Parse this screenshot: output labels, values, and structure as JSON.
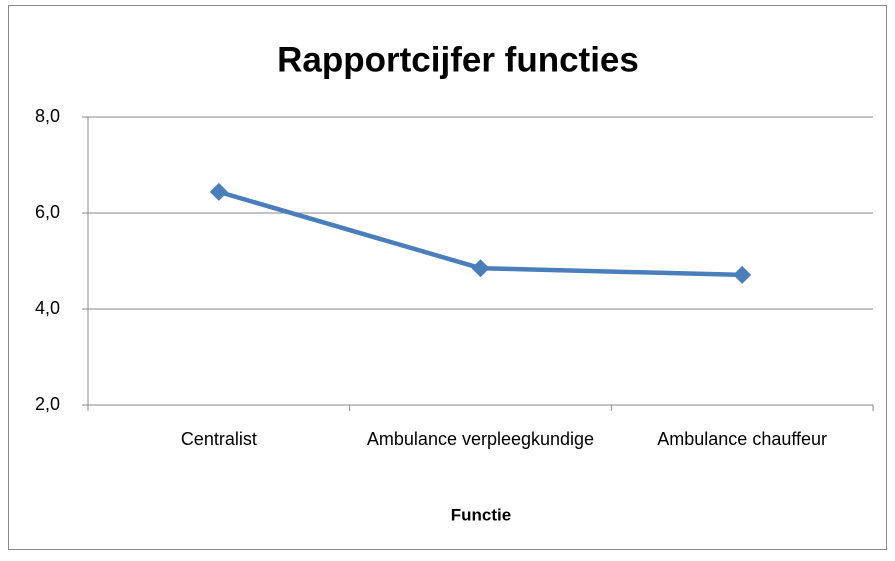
{
  "chart_data": {
    "type": "line",
    "title": "Rapportcijfer functies",
    "categories": [
      "Centralist",
      "Ambulance verpleegkundige",
      "Ambulance chauffeur"
    ],
    "values": [
      6.44,
      4.85,
      4.71
    ],
    "color": "#4a7ebb",
    "x_label": "Functie",
    "ylim": [
      2,
      8
    ],
    "yticks": [
      {
        "value": 2,
        "label": "2,0"
      },
      {
        "value": 4,
        "label": "4,0"
      },
      {
        "value": 6,
        "label": "6,0"
      },
      {
        "value": 8,
        "label": "8,0"
      }
    ],
    "grid": true
  }
}
